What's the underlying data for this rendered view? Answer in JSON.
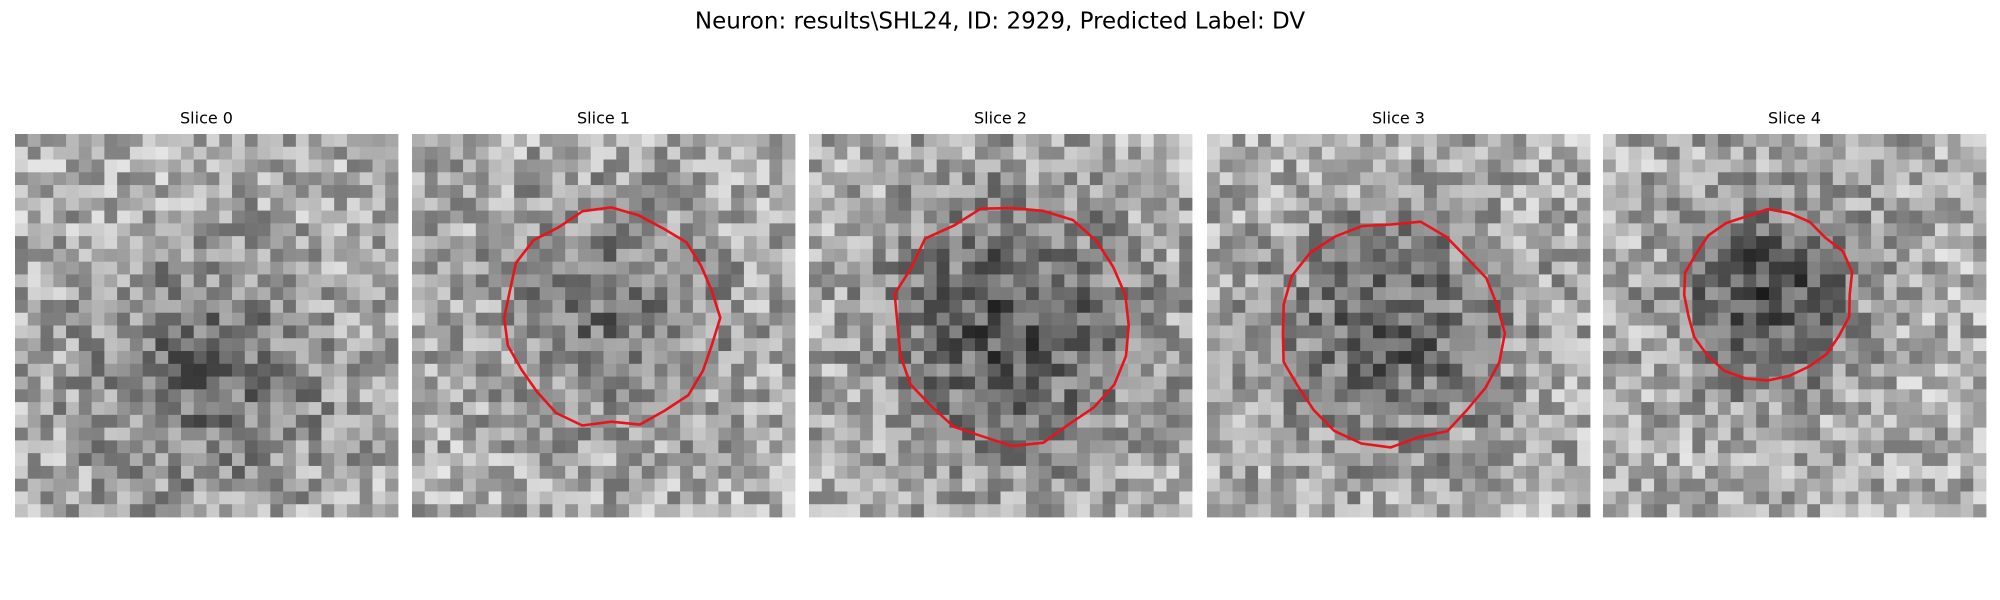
{
  "title": "Neuron: results\\SHL24, ID: 2929, Predicted Label: DV",
  "panels": [
    {
      "title": "Slice 0"
    },
    {
      "title": "Slice 1"
    },
    {
      "title": "Slice 2"
    },
    {
      "title": "Slice 3"
    },
    {
      "title": "Slice 4"
    }
  ]
}
